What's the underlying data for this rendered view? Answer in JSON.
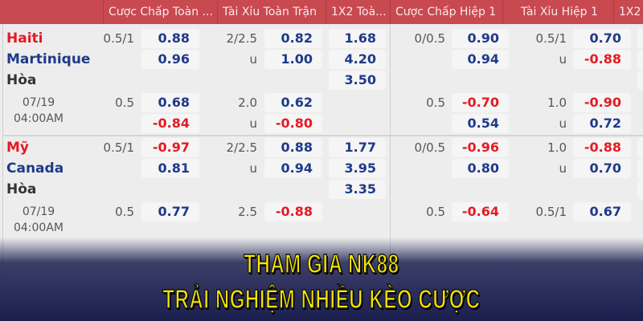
{
  "header": {
    "columns": [
      "Cược Chấp Toàn ...",
      "Tài Xỉu Toàn Trận",
      "1X2 Toà...",
      "Cược Chấp Hiệp 1",
      "Tài Xỉu Hiệp 1",
      "1X2"
    ]
  },
  "colors": {
    "header": "#c8494f",
    "positive": "#1e3a8a",
    "negative": "#e31b23",
    "home": "#e31b23",
    "away": "#1e3a8a",
    "banner": "#f7e600"
  },
  "matches": [
    {
      "home": "Haiti",
      "away": "Martinique",
      "draw": "Hòa",
      "date": "07/19",
      "time": "04:00AM",
      "rows": [
        {
          "ft_hdp": [
            "0.5/1",
            "0.88"
          ],
          "ft_ou": [
            "2/2.5",
            "0.82"
          ],
          "ft_1x2": "1.68",
          "h1_hdp": [
            "0/0.5",
            "0.90"
          ],
          "h1_ou": [
            "0.5/1",
            "0.70"
          ]
        },
        {
          "ft_hdp": [
            "",
            "0.96"
          ],
          "ft_ou": [
            "u",
            "1.00"
          ],
          "ft_1x2": "4.20",
          "h1_hdp": [
            "",
            "0.94"
          ],
          "h1_ou": [
            "u",
            "-0.88"
          ]
        },
        {
          "ft_1x2": "3.50"
        },
        {
          "ft_hdp": [
            "0.5",
            "0.68"
          ],
          "ft_ou": [
            "2.0",
            "0.62"
          ],
          "h1_hdp": [
            "0.5",
            "-0.70"
          ],
          "h1_ou": [
            "1.0",
            "-0.90"
          ]
        },
        {
          "ft_hdp": [
            "",
            "-0.84"
          ],
          "ft_ou": [
            "u",
            "-0.80"
          ],
          "h1_hdp": [
            "",
            "0.54"
          ],
          "h1_ou": [
            "u",
            "0.72"
          ]
        }
      ]
    },
    {
      "home": "Mỹ",
      "away": "Canada",
      "draw": "Hòa",
      "date": "07/19",
      "time": "04:00AM",
      "rows": [
        {
          "ft_hdp": [
            "0.5/1",
            "-0.97"
          ],
          "ft_ou": [
            "2/2.5",
            "0.88"
          ],
          "ft_1x2": "1.77",
          "h1_hdp": [
            "0/0.5",
            "-0.96"
          ],
          "h1_ou": [
            "1.0",
            "-0.88"
          ]
        },
        {
          "ft_hdp": [
            "",
            "0.81"
          ],
          "ft_ou": [
            "u",
            "0.94"
          ],
          "ft_1x2": "3.95",
          "h1_hdp": [
            "",
            "0.80"
          ],
          "h1_ou": [
            "u",
            "0.70"
          ]
        },
        {
          "ft_1x2": "3.35"
        },
        {
          "ft_hdp": [
            "0.5",
            "0.77"
          ],
          "ft_ou": [
            "2.5",
            "-0.88"
          ],
          "h1_hdp": [
            "0.5",
            "-0.64"
          ],
          "h1_ou": [
            "0.5/1",
            "0.67"
          ]
        }
      ]
    }
  ],
  "banner": {
    "line1": "THAM GIA NK88",
    "line2": "TRẢI NGHIỆM NHIỀU KÈO CƯỢC"
  }
}
